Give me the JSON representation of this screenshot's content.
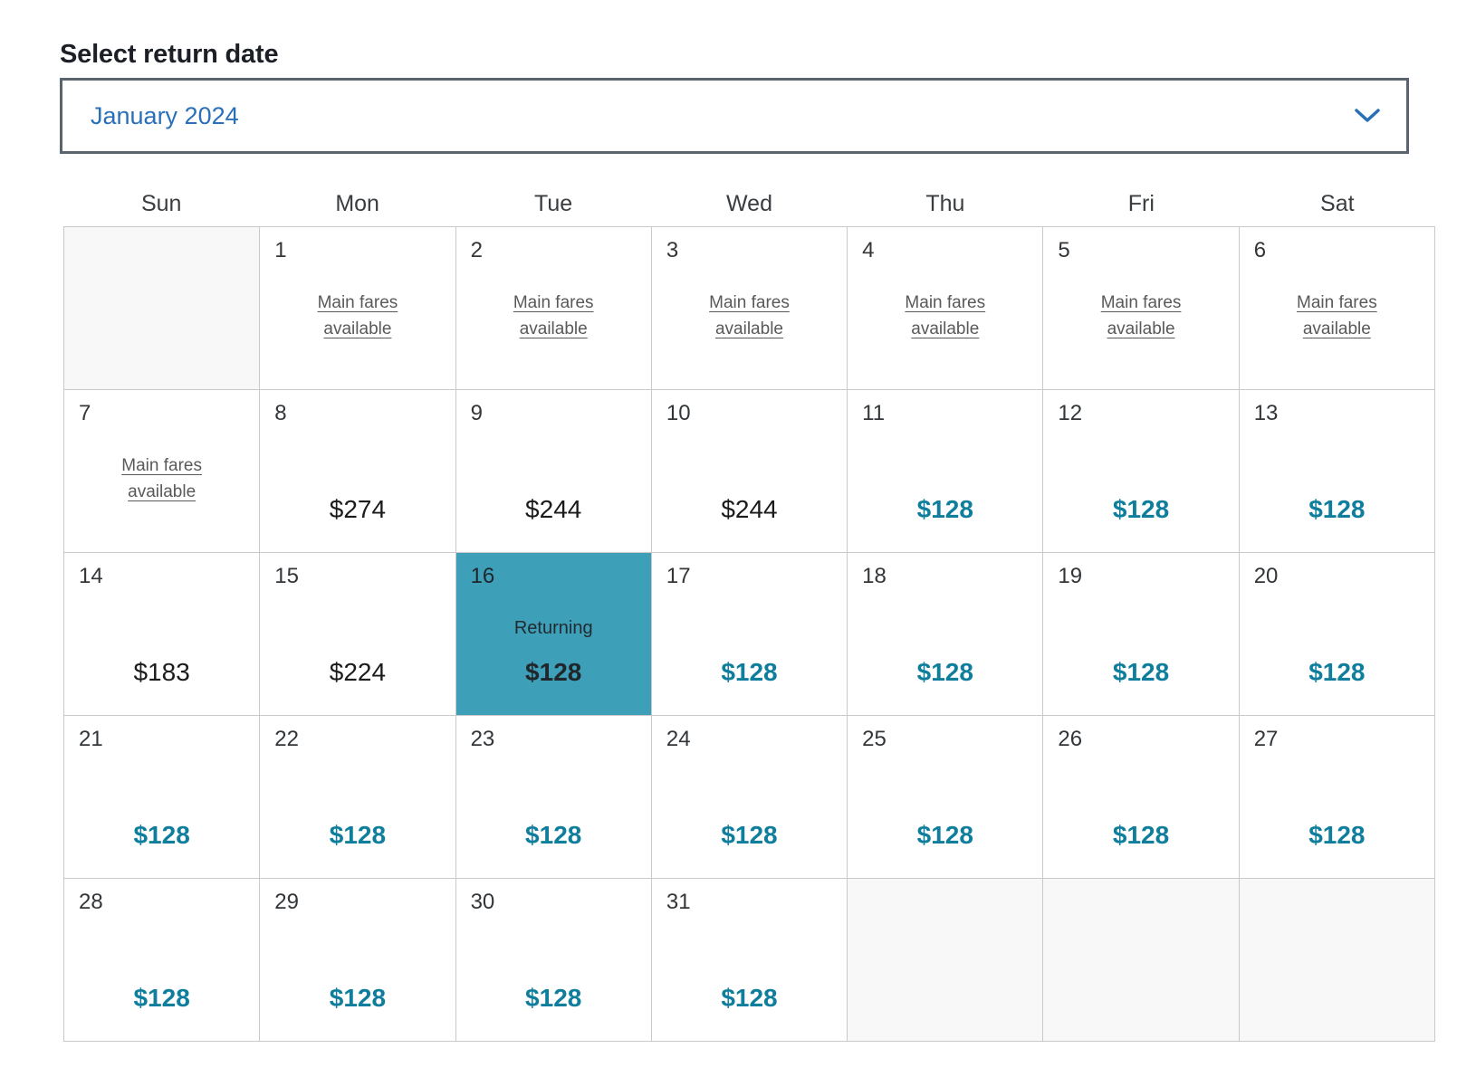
{
  "header": {
    "title": "Select return date"
  },
  "month_dropdown": {
    "value": "January 2024",
    "icon": "chevron-down"
  },
  "calendar": {
    "weekdays": [
      "Sun",
      "Mon",
      "Tue",
      "Wed",
      "Thu",
      "Fri",
      "Sat"
    ],
    "fare_link_lines": [
      "Main fares",
      "available"
    ],
    "selected_label": "Returning",
    "cells": [
      {
        "type": "empty"
      },
      {
        "day": "1",
        "type": "fares"
      },
      {
        "day": "2",
        "type": "fares"
      },
      {
        "day": "3",
        "type": "fares"
      },
      {
        "day": "4",
        "type": "fares"
      },
      {
        "day": "5",
        "type": "fares"
      },
      {
        "day": "6",
        "type": "fares"
      },
      {
        "day": "7",
        "type": "fares"
      },
      {
        "day": "8",
        "type": "price",
        "price": "$274",
        "style": "black"
      },
      {
        "day": "9",
        "type": "price",
        "price": "$244",
        "style": "black"
      },
      {
        "day": "10",
        "type": "price",
        "price": "$244",
        "style": "black"
      },
      {
        "day": "11",
        "type": "price",
        "price": "$128",
        "style": "teal"
      },
      {
        "day": "12",
        "type": "price",
        "price": "$128",
        "style": "teal"
      },
      {
        "day": "13",
        "type": "price",
        "price": "$128",
        "style": "teal"
      },
      {
        "day": "14",
        "type": "price",
        "price": "$183",
        "style": "black"
      },
      {
        "day": "15",
        "type": "price",
        "price": "$224",
        "style": "black"
      },
      {
        "day": "16",
        "type": "selected",
        "label": "Returning",
        "price": "$128"
      },
      {
        "day": "17",
        "type": "price",
        "price": "$128",
        "style": "teal"
      },
      {
        "day": "18",
        "type": "price",
        "price": "$128",
        "style": "teal"
      },
      {
        "day": "19",
        "type": "price",
        "price": "$128",
        "style": "teal"
      },
      {
        "day": "20",
        "type": "price",
        "price": "$128",
        "style": "teal"
      },
      {
        "day": "21",
        "type": "price",
        "price": "$128",
        "style": "teal"
      },
      {
        "day": "22",
        "type": "price",
        "price": "$128",
        "style": "teal"
      },
      {
        "day": "23",
        "type": "price",
        "price": "$128",
        "style": "teal"
      },
      {
        "day": "24",
        "type": "price",
        "price": "$128",
        "style": "teal"
      },
      {
        "day": "25",
        "type": "price",
        "price": "$128",
        "style": "teal"
      },
      {
        "day": "26",
        "type": "price",
        "price": "$128",
        "style": "teal"
      },
      {
        "day": "27",
        "type": "price",
        "price": "$128",
        "style": "teal"
      },
      {
        "day": "28",
        "type": "price",
        "price": "$128",
        "style": "teal"
      },
      {
        "day": "29",
        "type": "price",
        "price": "$128",
        "style": "teal"
      },
      {
        "day": "30",
        "type": "price",
        "price": "$128",
        "style": "teal"
      },
      {
        "day": "31",
        "type": "price",
        "price": "$128",
        "style": "teal"
      },
      {
        "type": "empty"
      },
      {
        "type": "empty"
      },
      {
        "type": "empty"
      }
    ]
  },
  "colors": {
    "selected_bg": "#3d9fb8",
    "teal_price": "#0f7e9c",
    "dropdown_text_blue": "#2a70b8",
    "grid_border": "#c9c9c9",
    "empty_cell_bg": "#f8f8f8"
  }
}
